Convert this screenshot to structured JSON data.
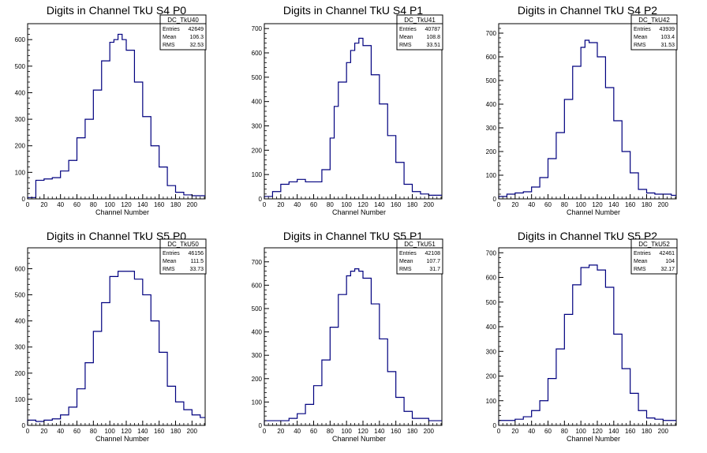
{
  "chart_data": [
    {
      "type": "histogram",
      "title": "Digits in Channel TkU S4 P0",
      "xlabel": "Channel Number",
      "ylabel": "",
      "xlim": [
        0,
        216
      ],
      "ylim": [
        0,
        660
      ],
      "xticks": [
        0,
        20,
        40,
        60,
        80,
        100,
        120,
        140,
        160,
        180,
        200
      ],
      "yticks": [
        0,
        100,
        200,
        300,
        400,
        500,
        600
      ],
      "stats": {
        "name": "DC_TkU40",
        "entries": "42649",
        "mean": "106.3",
        "rms": "32.53"
      },
      "x": [
        0,
        10,
        20,
        30,
        40,
        50,
        60,
        70,
        80,
        90,
        100,
        105,
        110,
        115,
        120,
        130,
        140,
        150,
        160,
        170,
        180,
        190,
        200,
        210,
        216
      ],
      "values": [
        5,
        70,
        75,
        80,
        105,
        145,
        230,
        300,
        410,
        520,
        590,
        600,
        620,
        600,
        560,
        440,
        310,
        200,
        120,
        50,
        25,
        15,
        12,
        12,
        12
      ]
    },
    {
      "type": "histogram",
      "title": "Digits in Channel TkU S4 P1",
      "xlabel": "Channel Number",
      "ylabel": "",
      "xlim": [
        0,
        216
      ],
      "ylim": [
        0,
        720
      ],
      "xticks": [
        0,
        20,
        40,
        60,
        80,
        100,
        120,
        140,
        160,
        180,
        200
      ],
      "yticks": [
        0,
        100,
        200,
        300,
        400,
        500,
        600,
        700
      ],
      "stats": {
        "name": "DC_TkU41",
        "entries": "40787",
        "mean": "108.8",
        "rms": "33.51"
      },
      "x": [
        0,
        10,
        20,
        30,
        40,
        50,
        60,
        70,
        80,
        85,
        90,
        100,
        105,
        110,
        115,
        120,
        130,
        140,
        150,
        160,
        170,
        180,
        190,
        200,
        210,
        216
      ],
      "values": [
        10,
        30,
        60,
        70,
        80,
        70,
        70,
        120,
        250,
        380,
        480,
        560,
        610,
        640,
        660,
        630,
        510,
        390,
        260,
        150,
        60,
        30,
        20,
        15,
        15,
        15
      ]
    },
    {
      "type": "histogram",
      "title": "Digits in Channel TkU S4 P2",
      "xlabel": "Channel Number",
      "ylabel": "",
      "xlim": [
        0,
        216
      ],
      "ylim": [
        0,
        740
      ],
      "xticks": [
        0,
        20,
        40,
        60,
        80,
        100,
        120,
        140,
        160,
        180,
        200
      ],
      "yticks": [
        0,
        100,
        200,
        300,
        400,
        500,
        600,
        700
      ],
      "stats": {
        "name": "DC_TkU42",
        "entries": "43939",
        "mean": "103.4",
        "rms": "31.53"
      },
      "x": [
        0,
        10,
        20,
        30,
        40,
        50,
        60,
        70,
        80,
        90,
        100,
        105,
        110,
        120,
        130,
        140,
        150,
        160,
        170,
        180,
        190,
        200,
        210,
        216
      ],
      "values": [
        10,
        20,
        25,
        30,
        50,
        90,
        170,
        280,
        420,
        560,
        640,
        670,
        660,
        600,
        470,
        330,
        200,
        110,
        40,
        25,
        20,
        20,
        15,
        15
      ]
    },
    {
      "type": "histogram",
      "title": "Digits in Channel TkU S5 P0",
      "xlabel": "Channel Number",
      "ylabel": "",
      "xlim": [
        0,
        216
      ],
      "ylim": [
        0,
        680
      ],
      "xticks": [
        0,
        20,
        40,
        60,
        80,
        100,
        120,
        140,
        160,
        180,
        200
      ],
      "yticks": [
        0,
        100,
        200,
        300,
        400,
        500,
        600
      ],
      "stats": {
        "name": "DC_TkU50",
        "entries": "46156",
        "mean": "111.5",
        "rms": "33.73"
      },
      "x": [
        0,
        10,
        20,
        30,
        40,
        50,
        60,
        70,
        80,
        90,
        100,
        110,
        120,
        130,
        140,
        150,
        160,
        170,
        180,
        190,
        200,
        210,
        216
      ],
      "values": [
        20,
        15,
        20,
        25,
        40,
        70,
        140,
        240,
        360,
        470,
        570,
        590,
        590,
        560,
        500,
        400,
        280,
        150,
        90,
        60,
        40,
        30,
        30
      ]
    },
    {
      "type": "histogram",
      "title": "Digits in Channel TkU S5 P1",
      "xlabel": "Channel Number",
      "ylabel": "",
      "xlim": [
        0,
        216
      ],
      "ylim": [
        0,
        760
      ],
      "xticks": [
        0,
        20,
        40,
        60,
        80,
        100,
        120,
        140,
        160,
        180,
        200
      ],
      "yticks": [
        0,
        100,
        200,
        300,
        400,
        500,
        600,
        700
      ],
      "stats": {
        "name": "DC_TkU51",
        "entries": "42108",
        "mean": "107.7",
        "rms": "31.7"
      },
      "x": [
        0,
        10,
        20,
        30,
        40,
        50,
        60,
        70,
        80,
        90,
        100,
        105,
        110,
        115,
        120,
        130,
        140,
        150,
        160,
        170,
        180,
        190,
        200,
        210,
        216
      ],
      "values": [
        20,
        20,
        20,
        30,
        50,
        90,
        170,
        280,
        420,
        560,
        640,
        660,
        670,
        660,
        630,
        520,
        370,
        230,
        120,
        60,
        30,
        30,
        20,
        20,
        20
      ]
    },
    {
      "type": "histogram",
      "title": "Digits in Channel TkU S5 P2",
      "xlabel": "Channel Number",
      "ylabel": "",
      "xlim": [
        0,
        216
      ],
      "ylim": [
        0,
        720
      ],
      "xticks": [
        0,
        20,
        40,
        60,
        80,
        100,
        120,
        140,
        160,
        180,
        200
      ],
      "yticks": [
        0,
        100,
        200,
        300,
        400,
        500,
        600,
        700
      ],
      "stats": {
        "name": "DC_TkU52",
        "entries": "42461",
        "mean": "104",
        "rms": "32.17"
      },
      "x": [
        0,
        10,
        20,
        30,
        40,
        50,
        60,
        70,
        80,
        90,
        100,
        110,
        120,
        130,
        140,
        150,
        160,
        170,
        180,
        190,
        200,
        210,
        216
      ],
      "values": [
        20,
        20,
        25,
        35,
        60,
        100,
        190,
        310,
        450,
        570,
        640,
        650,
        630,
        560,
        370,
        230,
        130,
        60,
        30,
        25,
        20,
        20,
        20
      ]
    }
  ],
  "stats_labels": {
    "entries": "Entries",
    "mean": "Mean",
    "rms": "RMS"
  },
  "colors": {
    "line": "#00007f",
    "axis": "#000000",
    "background": "#ffffff"
  }
}
